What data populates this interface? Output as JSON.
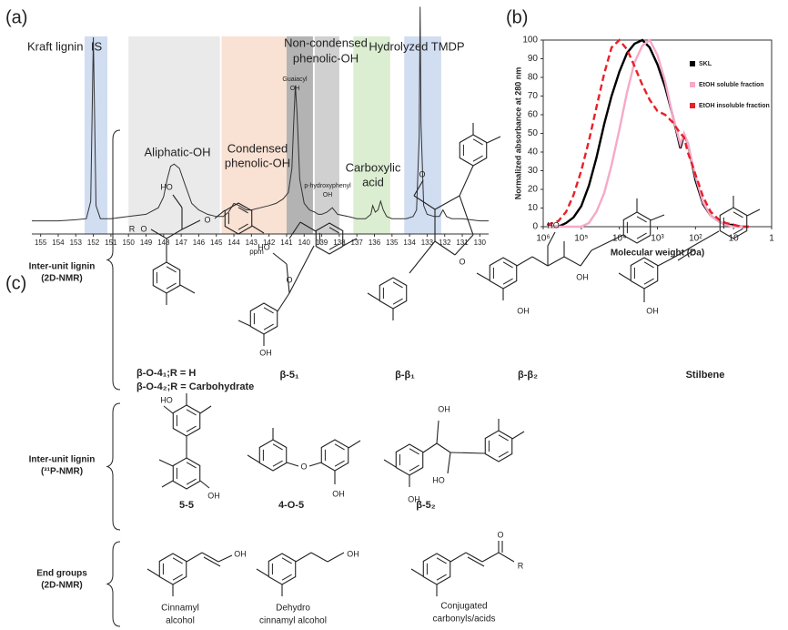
{
  "chart_data": [
    {
      "type": "line",
      "panel_label": "(a)",
      "title": "Kraft lignin",
      "x_label": "ppm",
      "color": "#333333",
      "x": [
        155.5,
        154,
        153,
        152.4,
        152.15,
        152.0,
        151.85,
        151.6,
        151,
        150,
        149,
        148.3,
        148,
        147.8,
        147.6,
        147.4,
        147.1,
        146.8,
        146.4,
        146,
        145.5,
        145,
        144.6,
        144.3,
        144,
        143.7,
        143.3,
        143,
        142.5,
        142,
        141.6,
        141.2,
        140.9,
        140.7,
        140.6,
        140.5,
        140.4,
        140.25,
        140,
        139.7,
        139.4,
        139.2,
        139,
        138.7,
        138.4,
        138.1,
        137.5,
        137,
        136.5,
        136.2,
        136.1,
        135.95,
        135.8,
        135.65,
        135.5,
        135.3,
        135,
        134.6,
        134.2,
        133.8,
        133.6,
        133.45,
        133.4,
        133.35,
        133.2,
        133,
        132.6,
        132.3,
        132.1,
        131.9,
        131.6,
        131,
        130,
        129.5
      ],
      "values": [
        1,
        1,
        1.5,
        2,
        10,
        85,
        8,
        2,
        2,
        3,
        4,
        7,
        12,
        20,
        26,
        27,
        25,
        18,
        9,
        6,
        4,
        3,
        3,
        5,
        9,
        8,
        6,
        6,
        7,
        8,
        9,
        11,
        14,
        25,
        45,
        63,
        50,
        20,
        9,
        6,
        5,
        4,
        4,
        5,
        7,
        4,
        3,
        2,
        2,
        4,
        8,
        5,
        6,
        10,
        6,
        3,
        2,
        2,
        2,
        3,
        6,
        40,
        99,
        45,
        8,
        4,
        3,
        3,
        6,
        3,
        2,
        2,
        1,
        1
      ],
      "xlim": [
        155.5,
        129.5
      ],
      "ylim": [
        0,
        100
      ],
      "xticks": [
        155,
        154,
        153,
        152,
        151,
        150,
        149,
        148,
        147,
        146,
        145,
        144,
        143,
        142,
        141,
        140,
        139,
        138,
        137,
        136,
        135,
        134,
        133,
        132,
        131,
        130
      ],
      "regions": [
        {
          "label": [
            "IS"
          ],
          "range": [
            152.5,
            151.2
          ],
          "color": "#c9d7ef"
        },
        {
          "label": [
            "Aliphatic-OH"
          ],
          "range": [
            150.0,
            144.8
          ],
          "color": "#e6e6e6"
        },
        {
          "label": [
            "Condensed",
            "phenolic-OH"
          ],
          "range": [
            144.7,
            141.0
          ],
          "color": "#f8dccb"
        },
        {
          "label": [
            "Guaiacyl",
            "OH"
          ],
          "range": [
            141.0,
            139.5
          ],
          "color": "#a6a6a6"
        },
        {
          "label": [
            "p-hydroxyphenyl",
            "OH"
          ],
          "range": [
            139.4,
            138.0
          ],
          "color": "#c8c8c8"
        },
        {
          "label": [
            "Carboxylic",
            "acid"
          ],
          "range": [
            137.2,
            135.1
          ],
          "color": "#d5ebc9"
        },
        {
          "label": [
            "Hydrolyzed TMDP"
          ],
          "range": [
            134.3,
            132.2
          ],
          "color": "#c9d7ef"
        }
      ],
      "group_label": [
        "Non-condensed",
        "phenolic-OH"
      ]
    },
    {
      "type": "line",
      "panel_label": "(b)",
      "x_label": "Molecular weight (Da)",
      "y_label": "Normalized absorbance at 280 nm",
      "x": [
        800000,
        400000,
        250000,
        160000,
        100000,
        63000,
        40000,
        25000,
        16000,
        10000,
        6300,
        4000,
        2500,
        1600,
        1000,
        630,
        400,
        250,
        200,
        160,
        100,
        63,
        40,
        25,
        16,
        10,
        6.3,
        4
      ],
      "series": [
        {
          "name": "SKL",
          "color": "#000000",
          "dash": false,
          "values": [
            0,
            0,
            2,
            5,
            11,
            22,
            37,
            55,
            70,
            83,
            93,
            98,
            100,
            96,
            87,
            75,
            60,
            42,
            49,
            45,
            25,
            12,
            6,
            3,
            1,
            1,
            0,
            0
          ]
        },
        {
          "name": "EtOH soluble fraction",
          "color": "#f6a9c8",
          "dash": false,
          "values": [
            0,
            0,
            0,
            0,
            0,
            2,
            8,
            18,
            33,
            52,
            72,
            88,
            97,
            100,
            92,
            78,
            60,
            44,
            50,
            45,
            27,
            13,
            6,
            3,
            1,
            0,
            0,
            0
          ]
        },
        {
          "name": "EtOH insoluble fraction",
          "color": "#e8202a",
          "dash": true,
          "values": [
            1,
            3,
            8,
            17,
            30,
            46,
            64,
            82,
            96,
            100,
            95,
            86,
            76,
            68,
            62,
            60,
            56,
            50,
            48,
            40,
            28,
            16,
            8,
            4,
            2,
            1,
            0,
            0
          ]
        }
      ],
      "xlim": [
        1000000,
        1
      ],
      "log_x": true,
      "ylim": [
        0,
        100
      ],
      "xticks": [
        {
          "value": 1000000,
          "label": "10⁶"
        },
        {
          "value": 100000,
          "label": "10⁵"
        },
        {
          "value": 10000,
          "label": "10⁴"
        },
        {
          "value": 1000,
          "label": "10³"
        },
        {
          "value": 100,
          "label": "10²"
        },
        10,
        1
      ],
      "yticks": [
        0,
        10,
        20,
        30,
        40,
        50,
        60,
        70,
        80,
        90,
        100
      ],
      "legend": "upper right"
    }
  ],
  "structures": {
    "panel_label": "(c)",
    "groups": [
      {
        "label": [
          "Inter-unit lignin",
          "(2D-NMR)"
        ],
        "items": [
          {
            "name": [
              "β-O-4₁;R = H",
              "β-O-4₂;R = Carbohydrate"
            ],
            "atoms": [
              "HO",
              "R",
              "O",
              "O"
            ]
          },
          {
            "name": [
              "β-5₁"
            ],
            "atoms": [
              "HO",
              "O",
              "OH"
            ]
          },
          {
            "name": [
              "β-β₁"
            ],
            "atoms": [
              "O",
              "O"
            ]
          },
          {
            "name": [
              "β-β₂"
            ],
            "atoms": [
              "HO",
              "OH",
              "OH"
            ]
          },
          {
            "name": [
              "Stilbene"
            ],
            "atoms": [
              "OH"
            ]
          }
        ]
      },
      {
        "label": [
          "Inter-unit lignin",
          "(³¹P-NMR)"
        ],
        "items": [
          {
            "name": [
              "5-5"
            ],
            "atoms": [
              "HO",
              "OH"
            ]
          },
          {
            "name": [
              "4-O-5"
            ],
            "atoms": [
              "O",
              "OH"
            ]
          },
          {
            "name": [
              "β-5₂"
            ],
            "atoms": [
              "OH",
              "HO",
              "OH"
            ]
          }
        ]
      },
      {
        "label": [
          "End groups",
          "(2D-NMR)"
        ],
        "items": [
          {
            "name": [
              "Cinnamyl",
              "alcohol"
            ],
            "atoms": [
              "OH"
            ]
          },
          {
            "name": [
              "Dehydro",
              "cinnamyl alcohol"
            ],
            "atoms": [
              "OH"
            ]
          },
          {
            "name": [
              "Conjugated",
              "carbonyls/acids"
            ],
            "atoms": [
              "O",
              "R"
            ]
          }
        ]
      }
    ]
  }
}
